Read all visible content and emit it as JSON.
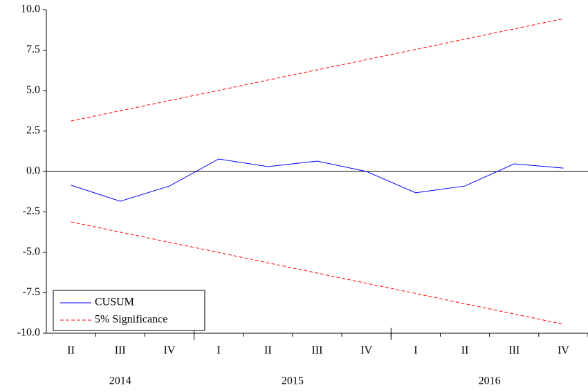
{
  "chart_data": {
    "type": "line",
    "years": [
      {
        "label": "2014",
        "quarters": [
          "II",
          "III",
          "IV"
        ]
      },
      {
        "label": "2015",
        "quarters": [
          "I",
          "II",
          "III",
          "IV"
        ]
      },
      {
        "label": "2016",
        "quarters": [
          "I",
          "II",
          "III",
          "IV"
        ]
      }
    ],
    "series": [
      {
        "name": "CUSUM",
        "color": "#0000ff",
        "dash": false,
        "values": [
          -0.85,
          -1.84,
          -0.9,
          0.77,
          0.3,
          0.64,
          0.0,
          -1.32,
          -0.9,
          0.47,
          0.21
        ]
      },
      {
        "name": "5% Significance",
        "color": "#ff0000",
        "dash": true,
        "values": [
          3.12,
          3.75,
          4.38,
          5.01,
          5.65,
          6.28,
          6.91,
          7.54,
          8.18,
          8.81,
          9.44
        ],
        "lower": [
          -3.12,
          -3.75,
          -4.38,
          -5.01,
          -5.65,
          -6.28,
          -6.91,
          -7.54,
          -8.18,
          -8.81,
          -9.44
        ]
      }
    ],
    "ylim": [
      -10,
      10
    ],
    "yticks": [
      {
        "value": -10,
        "label": "-10.0"
      },
      {
        "value": -7.5,
        "label": "-7.5"
      },
      {
        "value": -5,
        "label": "-5.0"
      },
      {
        "value": -2.5,
        "label": "-2.5"
      },
      {
        "value": 0,
        "label": "0.0"
      },
      {
        "value": 2.5,
        "label": "2.5"
      },
      {
        "value": 5,
        "label": "5.0"
      },
      {
        "value": 7.5,
        "label": "7.5"
      },
      {
        "value": 10,
        "label": "10.0"
      }
    ],
    "zero_line": true,
    "legend": "lower left"
  }
}
